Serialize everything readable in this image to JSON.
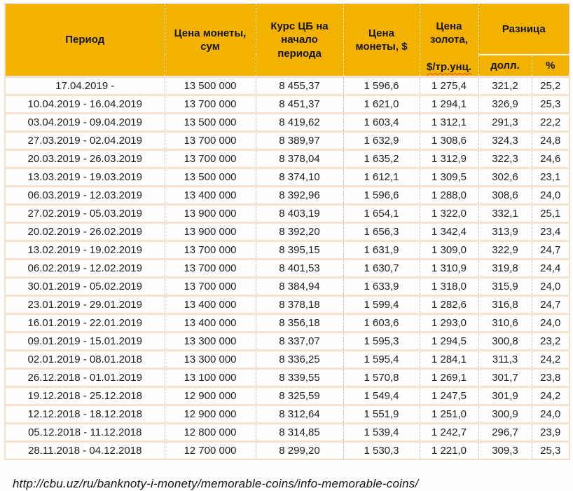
{
  "colors": {
    "header_bg": "#F3B200",
    "header_text": "#161616",
    "body_text": "#212121",
    "row_divider": "#F5E3D0",
    "grid_dashed_line": "#B5C3DC",
    "table_border": "#EFDECC",
    "subheader_divider": "#FDFDFA",
    "spellcheck_underline": "#D94F43"
  },
  "chart_data": {
    "type": "table",
    "columns": [
      "Период",
      "Цена монеты, сум",
      "Курс ЦБ на начало периода",
      "Цена монеты, $",
      "Цена золота, $/тр.унц.",
      "Разница: долл.",
      "Разница: %"
    ],
    "header": {
      "period": "Период",
      "coin_price_sum": "Цена монеты,\nсум",
      "cb_rate": "Курс ЦБ на\nначало\nпериода",
      "coin_price_usd": "Цена\nмонеты, $",
      "gold_price_lines": "Цена\nзолота,",
      "gold_price_unit": "$/тр.унц.",
      "difference": "Разница",
      "diff_usd": "долл.",
      "diff_pct": "%"
    },
    "column_keys": [
      "period",
      "coin-price-sum",
      "cb-rate",
      "coin-price-usd",
      "gold-price",
      "diff-usd",
      "diff-pct"
    ],
    "rows": [
      [
        "17.04.2019 -",
        "13 500 000",
        "8 455,37",
        "1 596,6",
        "1 275,4",
        "321,2",
        "25,2"
      ],
      [
        "10.04.2019 - 16.04.2019",
        "13 700 000",
        "8 451,37",
        "1 621,0",
        "1 294,1",
        "326,9",
        "25,3"
      ],
      [
        "03.04.2019 - 09.04.2019",
        "13 500 000",
        "8 419,62",
        "1 603,4",
        "1 312,1",
        "291,3",
        "22,2"
      ],
      [
        "27.03.2019 - 02.04.2019",
        "13 700 000",
        "8 389,97",
        "1 632,9",
        "1 308,6",
        "324,3",
        "24,8"
      ],
      [
        "20.03.2019 - 26.03.2019",
        "13 700 000",
        "8 378,04",
        "1 635,2",
        "1 312,9",
        "322,3",
        "24,6"
      ],
      [
        "13.03.2019 - 19.03.2019",
        "13 500 000",
        "8 374,10",
        "1 612,1",
        "1 309,5",
        "302,6",
        "23,1"
      ],
      [
        "06.03.2019 - 12.03.2019",
        "13 400 000",
        "8 392,96",
        "1 596,6",
        "1 288,0",
        "308,6",
        "24,0"
      ],
      [
        "27.02.2019 - 05.03.2019",
        "13 900 000",
        "8 403,19",
        "1 654,1",
        "1 322,0",
        "332,1",
        "25,1"
      ],
      [
        "20.02.2019 - 26.02.2019",
        "13 900 000",
        "8 392,20",
        "1 656,3",
        "1 342,4",
        "313,9",
        "23,4"
      ],
      [
        "13.02.2019 - 19.02.2019",
        "13 700 000",
        "8 395,15",
        "1 631,9",
        "1 309,0",
        "322,9",
        "24,7"
      ],
      [
        "06.02.2019 - 12.02.2019",
        "13 700 000",
        "8 401,53",
        "1 630,7",
        "1 310,9",
        "319,8",
        "24,4"
      ],
      [
        "30.01.2019 - 05.02.2019",
        "13 700 000",
        "8 384,94",
        "1 633,9",
        "1 318,0",
        "315,9",
        "24,0"
      ],
      [
        "23.01.2019 - 29.01.2019",
        "13 400 000",
        "8 378,18",
        "1 599,4",
        "1 282,6",
        "316,8",
        "24,7"
      ],
      [
        "16.01.2019 - 22.01.2019",
        "13 400 000",
        "8 356,18",
        "1 603,6",
        "1 293,0",
        "310,6",
        "24,0"
      ],
      [
        "09.01.2019 - 15.01.2019",
        "13 300 000",
        "8 337,07",
        "1 595,3",
        "1 294,5",
        "300,8",
        "23,2"
      ],
      [
        "02.01.2019 - 08.01.2018",
        "13 300 000",
        "8 336,25",
        "1 595,4",
        "1 284,1",
        "311,3",
        "24,2"
      ],
      [
        "26.12.2018 - 01.01.2019",
        "13 100 000",
        "8 339,55",
        "1 570,8",
        "1 269,1",
        "301,7",
        "23,8"
      ],
      [
        "19.12.2018 - 25.12.2018",
        "12 900 000",
        "8 325,59",
        "1 549,4",
        "1 247,5",
        "301,9",
        "24,2"
      ],
      [
        "12.12.2018 - 18.12.2018",
        "12 900 000",
        "8 312,64",
        "1 551,9",
        "1 251,0",
        "300,9",
        "24,0"
      ],
      [
        "05.12.2018 - 11.12.2018",
        "12 800 000",
        "8 314,85",
        "1 539,4",
        "1 242,7",
        "296,7",
        "23,9"
      ],
      [
        "28.11.2018 - 04.12.2018",
        "12 700 000",
        "8 299,20",
        "1 530,3",
        "1 221,0",
        "309,3",
        "25,3"
      ]
    ]
  },
  "footer": {
    "source_url": "http://cbu.uz/ru/banknoty-i-monety/memorable-coins/info-memorable-coins/"
  }
}
